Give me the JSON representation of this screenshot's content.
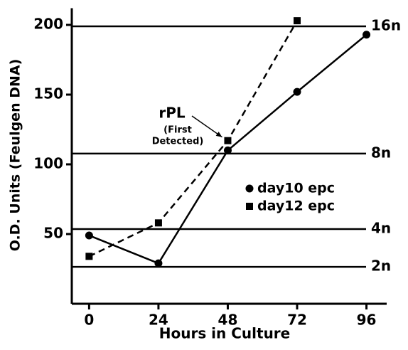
{
  "chart_data": {
    "type": "line",
    "xlabel": "Hours in Culture",
    "ylabel": "O.D. Units (Feulgen DNA)",
    "x": [
      0,
      24,
      48,
      72,
      96
    ],
    "series": [
      {
        "name": "day10 epc",
        "color": "#000000",
        "marker": "circle",
        "linestyle": "solid",
        "values": [
          49,
          29,
          110,
          152,
          193
        ]
      },
      {
        "name": "day12 epc",
        "color": "#000000",
        "marker": "square",
        "linestyle": "dashed",
        "values": [
          34,
          58,
          117,
          203,
          null
        ]
      }
    ],
    "xlim": [
      -6,
      103
    ],
    "xticks": [
      0,
      24,
      48,
      72,
      96
    ],
    "ylim": [
      0,
      212
    ],
    "yticks": [
      50,
      100,
      150,
      200
    ],
    "reference_lines": [
      {
        "value": 199,
        "label": "16n"
      },
      {
        "value": 107.7,
        "label": "8n"
      },
      {
        "value": 53.6,
        "label": "4n"
      },
      {
        "value": 26.5,
        "label": "2n"
      }
    ],
    "annotation": {
      "lines": [
        "rPL",
        "(First",
        "Detected)"
      ]
    },
    "legend": "center right"
  }
}
